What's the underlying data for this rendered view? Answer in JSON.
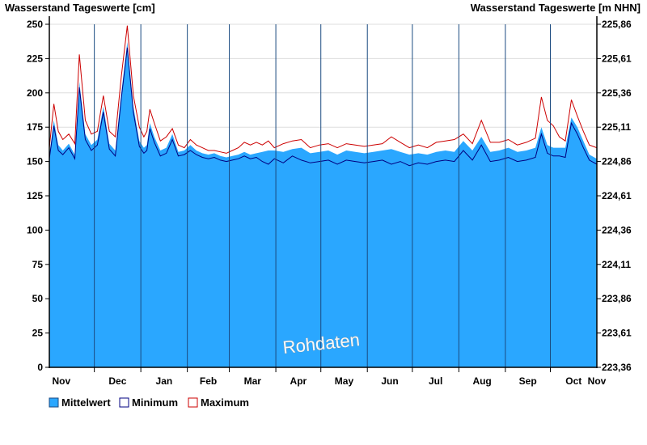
{
  "titles": {
    "left": "Wasserstand Tageswerte [cm]",
    "right": "Wasserstand Tageswerte [m NHN]"
  },
  "watermark": "Rohdaten",
  "chart_data": {
    "type": "area",
    "ylim": [
      0,
      250
    ],
    "yticks_left": [
      "0",
      "25",
      "50",
      "75",
      "100",
      "125",
      "150",
      "175",
      "200",
      "225",
      "250"
    ],
    "yticks_right": [
      "223,36",
      "223,61",
      "223,86",
      "224,11",
      "224,36",
      "224,61",
      "224,86",
      "225,11",
      "225,36",
      "225,61",
      "225,86"
    ],
    "months": [
      "Nov",
      "Dec",
      "Jan",
      "Feb",
      "Mar",
      "Apr",
      "May",
      "Jun",
      "Jul",
      "Aug",
      "Sep",
      "Oct",
      "Nov"
    ],
    "x_unit": "days",
    "xlim": [
      0,
      365
    ],
    "grid": {
      "horizontal": true,
      "vertical_month_lines": true
    },
    "legend_position": "bottom-left",
    "colors": {
      "mittel": "#2aa7ff",
      "minimum": "#000080",
      "maximum": "#cc0000",
      "grid": "#dddddd",
      "month_line": "#1a4a80"
    },
    "series": [
      {
        "name": "Mittelwert",
        "x": [
          0,
          3,
          6,
          9,
          13,
          17,
          20,
          24,
          28,
          32,
          36,
          40,
          44,
          48,
          52,
          56,
          60,
          63,
          65,
          67,
          70,
          74,
          78,
          82,
          86,
          90,
          94,
          98,
          102,
          106,
          110,
          114,
          118,
          122,
          126,
          130,
          134,
          138,
          142,
          146,
          150,
          156,
          162,
          168,
          174,
          180,
          186,
          192,
          198,
          204,
          210,
          216,
          222,
          228,
          234,
          240,
          246,
          252,
          258,
          264,
          270,
          276,
          282,
          288,
          294,
          300,
          306,
          312,
          318,
          324,
          328,
          332,
          336,
          340,
          344,
          348,
          352,
          356,
          360,
          365
        ],
        "values": [
          155,
          180,
          162,
          158,
          163,
          155,
          208,
          170,
          162,
          166,
          190,
          163,
          158,
          200,
          237,
          190,
          165,
          160,
          162,
          178,
          168,
          158,
          160,
          170,
          157,
          158,
          162,
          158,
          156,
          155,
          156,
          154,
          153,
          154,
          155,
          157,
          155,
          156,
          157,
          158,
          158,
          157,
          159,
          160,
          156,
          157,
          158,
          155,
          158,
          157,
          156,
          157,
          158,
          159,
          157,
          155,
          156,
          155,
          157,
          158,
          157,
          165,
          158,
          168,
          157,
          158,
          160,
          157,
          158,
          160,
          175,
          162,
          160,
          160,
          160,
          182,
          175,
          165,
          155,
          152
        ]
      },
      {
        "name": "Minimum",
        "x": [
          0,
          3,
          6,
          9,
          13,
          17,
          20,
          24,
          28,
          32,
          36,
          40,
          44,
          48,
          52,
          56,
          60,
          63,
          65,
          67,
          70,
          74,
          78,
          82,
          86,
          90,
          94,
          98,
          102,
          106,
          110,
          114,
          118,
          122,
          126,
          130,
          134,
          138,
          142,
          146,
          150,
          156,
          162,
          168,
          174,
          180,
          186,
          192,
          198,
          204,
          210,
          216,
          222,
          228,
          234,
          240,
          246,
          252,
          258,
          264,
          270,
          276,
          282,
          288,
          294,
          300,
          306,
          312,
          318,
          324,
          328,
          332,
          336,
          340,
          344,
          348,
          352,
          356,
          360,
          365
        ],
        "values": [
          152,
          176,
          158,
          155,
          160,
          152,
          204,
          166,
          158,
          162,
          186,
          159,
          154,
          196,
          233,
          186,
          161,
          156,
          158,
          174,
          164,
          154,
          156,
          166,
          154,
          155,
          158,
          155,
          153,
          152,
          153,
          151,
          150,
          151,
          152,
          154,
          152,
          153,
          150,
          148,
          152,
          149,
          154,
          151,
          149,
          150,
          151,
          148,
          151,
          150,
          149,
          150,
          151,
          148,
          150,
          147,
          149,
          148,
          150,
          151,
          150,
          158,
          151,
          162,
          150,
          151,
          153,
          150,
          151,
          153,
          170,
          156,
          154,
          154,
          153,
          178,
          170,
          160,
          151,
          148
        ]
      },
      {
        "name": "Maximum",
        "x": [
          0,
          3,
          6,
          9,
          13,
          17,
          20,
          24,
          28,
          32,
          36,
          40,
          44,
          48,
          52,
          56,
          60,
          63,
          65,
          67,
          70,
          74,
          78,
          82,
          86,
          90,
          94,
          98,
          102,
          106,
          110,
          114,
          118,
          122,
          126,
          130,
          134,
          138,
          142,
          146,
          150,
          156,
          162,
          168,
          174,
          180,
          186,
          192,
          198,
          204,
          210,
          216,
          222,
          228,
          234,
          240,
          246,
          252,
          258,
          264,
          270,
          276,
          282,
          288,
          294,
          300,
          306,
          312,
          318,
          324,
          328,
          332,
          336,
          340,
          344,
          348,
          352,
          356,
          360,
          365
        ],
        "values": [
          160,
          192,
          172,
          166,
          170,
          163,
          228,
          180,
          170,
          172,
          198,
          172,
          168,
          212,
          249,
          198,
          175,
          168,
          172,
          188,
          178,
          165,
          168,
          174,
          162,
          160,
          166,
          162,
          160,
          158,
          158,
          157,
          156,
          158,
          160,
          164,
          162,
          164,
          162,
          165,
          160,
          163,
          165,
          166,
          160,
          162,
          163,
          160,
          163,
          162,
          161,
          162,
          163,
          168,
          164,
          160,
          162,
          160,
          164,
          165,
          166,
          170,
          163,
          180,
          164,
          164,
          166,
          162,
          164,
          167,
          197,
          180,
          176,
          168,
          165,
          195,
          183,
          172,
          162,
          160
        ]
      }
    ]
  },
  "legend": {
    "items": [
      {
        "label": "Mittelwert",
        "swatch": "#2aa7ff",
        "border": "#1a4a80"
      },
      {
        "label": "Minimum",
        "swatch": "#ffffff",
        "border": "#000080"
      },
      {
        "label": "Maximum",
        "swatch": "#ffffff",
        "border": "#cc0000"
      }
    ]
  }
}
